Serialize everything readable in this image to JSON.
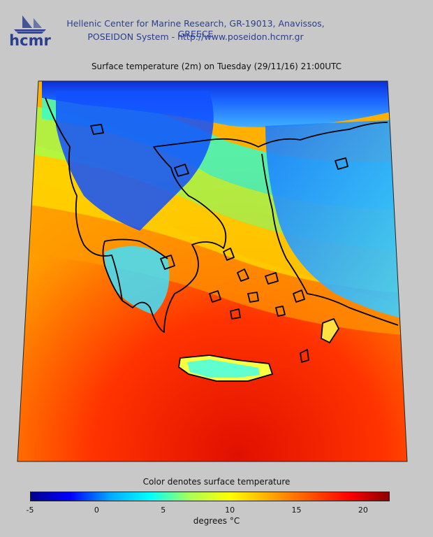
{
  "header": {
    "logo_text": "hcmr",
    "line1": "Hellenic Center for Marine Research, GR-19013, Anavissos, GREECE",
    "line2": "POSEIDON System - http://www.poseidon.hcmr.gr"
  },
  "map": {
    "title": "Surface temperature (2m) on Tuesday (29/11/16) 21:00UTC"
  },
  "colorbar": {
    "title": "Color denotes surface temperature",
    "unit": "degrees °C",
    "min": -5,
    "max": 22,
    "ticks": [
      "-5",
      "0",
      "5",
      "10",
      "15",
      "20"
    ],
    "colors": [
      "#00008f",
      "#0000ff",
      "#00aaff",
      "#00ffff",
      "#aaff55",
      "#ffff00",
      "#ffaa00",
      "#ff5500",
      "#ff0000",
      "#8b0000"
    ]
  }
}
